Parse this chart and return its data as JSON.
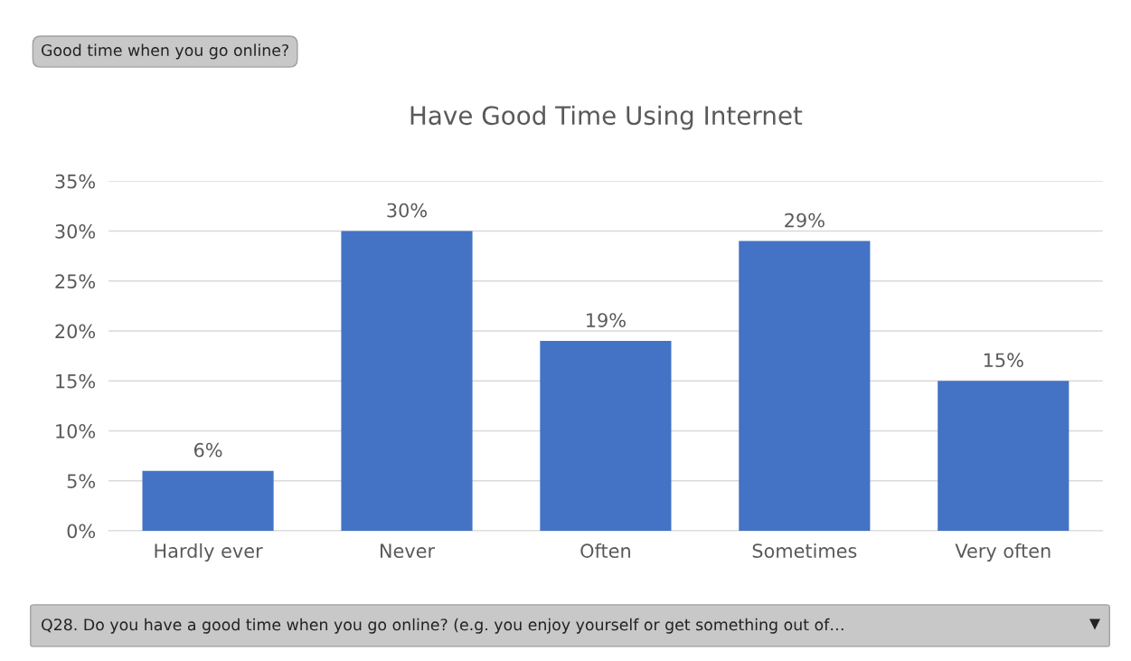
{
  "chart_data": {
    "type": "bar",
    "title": "Have Good Time Using Internet",
    "categories": [
      "Hardly ever",
      "Never",
      "Often",
      "Sometimes",
      "Very often"
    ],
    "values": [
      6,
      30,
      19,
      29,
      15
    ],
    "value_labels": [
      "6%",
      "30%",
      "19%",
      "29%",
      "15%"
    ],
    "color": "#4472c4",
    "ylim": [
      0,
      35
    ],
    "yticks": [
      {
        "value": 0,
        "label": "0%"
      },
      {
        "value": 5,
        "label": "5%"
      },
      {
        "value": 10,
        "label": "10%"
      },
      {
        "value": 15,
        "label": "15%"
      },
      {
        "value": 20,
        "label": "20%"
      },
      {
        "value": 25,
        "label": "25%"
      },
      {
        "value": 30,
        "label": "30%"
      },
      {
        "value": 35,
        "label": "35%"
      }
    ],
    "grid": "y",
    "annotations": [
      "Good time when you go online?",
      "Q28. Do you have a good time when you go online? (e.g. you enjoy yourself or get something out of…"
    ]
  }
}
